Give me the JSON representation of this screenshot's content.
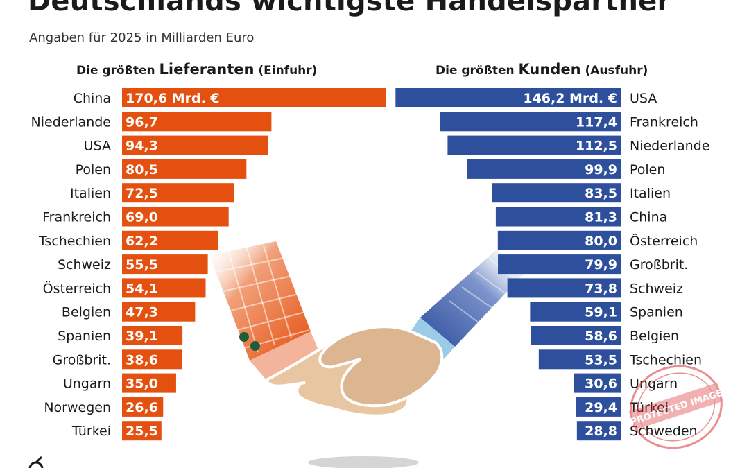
{
  "title": "Deutschlands wichtigste Handelspartner",
  "subtitle": "Angaben für 2025 in Milliarden Euro",
  "colors": {
    "import": "#e4500f",
    "export": "#2e4f9c",
    "text": "#1a1a1a"
  },
  "stamp_text": "PROTECTED IMAGE",
  "chart_data": [
    {
      "type": "bar",
      "orientation": "horizontal",
      "title_prefix": "Die größten ",
      "title_main": "Lieferanten",
      "title_suffix": " (Einfuhr)",
      "categories": [
        "China",
        "Niederlande",
        "USA",
        "Polen",
        "Italien",
        "Frankreich",
        "Tschechien",
        "Schweiz",
        "Österreich",
        "Belgien",
        "Spanien",
        "Großbrit.",
        "Ungarn",
        "Norwegen",
        "Türkei"
      ],
      "values": [
        170.6,
        96.7,
        94.3,
        80.5,
        72.5,
        69.0,
        62.2,
        55.5,
        54.1,
        47.3,
        39.1,
        38.6,
        35.0,
        26.6,
        25.5
      ],
      "value_labels": [
        "170,6 Mrd. €",
        "96,7",
        "94,3",
        "80,5",
        "72,5",
        "69,0",
        "62,2",
        "55,5",
        "54,1",
        "47,3",
        "39,1",
        "38,6",
        "35,0",
        "26,6",
        "25,5"
      ],
      "unit": "Milliarden Euro"
    },
    {
      "type": "bar",
      "orientation": "horizontal",
      "title_prefix": "Die größten ",
      "title_main": "Kunden",
      "title_suffix": " (Ausfuhr)",
      "categories": [
        "USA",
        "Frankreich",
        "Niederlande",
        "Polen",
        "Italien",
        "China",
        "Österreich",
        "Großbrit.",
        "Schweiz",
        "Spanien",
        "Belgien",
        "Tschechien",
        "Ungarn",
        "Türkei",
        "Schweden"
      ],
      "values": [
        146.2,
        117.4,
        112.5,
        99.9,
        83.5,
        81.3,
        80.0,
        79.9,
        73.8,
        59.1,
        58.6,
        53.5,
        30.6,
        29.4,
        28.8
      ],
      "value_labels": [
        "146,2 Mrd. €",
        "117,4",
        "112,5",
        "99,9",
        "83,5",
        "81,3",
        "80,0",
        "79,9",
        "73,8",
        "59,1",
        "58,6",
        "53,5",
        "30,6",
        "29,4",
        "28,8"
      ],
      "unit": "Milliarden Euro"
    }
  ]
}
